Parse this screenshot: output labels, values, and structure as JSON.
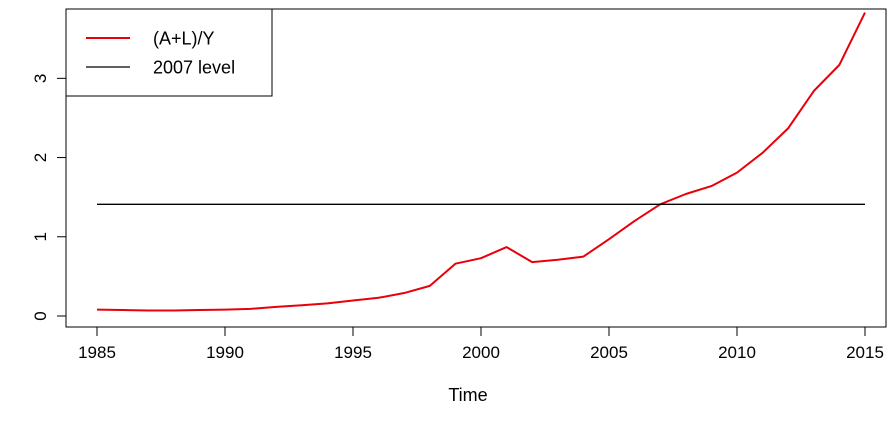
{
  "chart_data": {
    "type": "line",
    "title": "",
    "xlabel": "Time",
    "ylabel": "",
    "xlim": [
      1985,
      2015
    ],
    "ylim": [
      0,
      3.85
    ],
    "xticks": [
      1985,
      1990,
      1995,
      2000,
      2005,
      2010,
      2015
    ],
    "yticks": [
      0,
      1,
      2,
      3
    ],
    "grid": false,
    "legend_position": "top-left",
    "series": [
      {
        "name": "(A+L)/Y",
        "color": "#e8000b",
        "x": [
          1985,
          1986,
          1987,
          1988,
          1989,
          1990,
          1991,
          1992,
          1993,
          1994,
          1995,
          1996,
          1997,
          1998,
          1999,
          2000,
          2001,
          2002,
          2003,
          2004,
          2005,
          2006,
          2007,
          2008,
          2009,
          2010,
          2011,
          2012,
          2013,
          2014,
          2015
        ],
        "values": [
          0.08,
          0.075,
          0.07,
          0.07,
          0.075,
          0.08,
          0.09,
          0.115,
          0.135,
          0.16,
          0.195,
          0.23,
          0.29,
          0.38,
          0.66,
          0.73,
          0.87,
          0.68,
          0.71,
          0.75,
          0.97,
          1.2,
          1.41,
          1.54,
          1.64,
          1.81,
          2.06,
          2.37,
          2.84,
          3.17,
          3.83
        ]
      },
      {
        "name": "2007 level",
        "color": "#000000",
        "x": [
          1985,
          2015
        ],
        "values": [
          1.41,
          1.41
        ]
      }
    ]
  }
}
